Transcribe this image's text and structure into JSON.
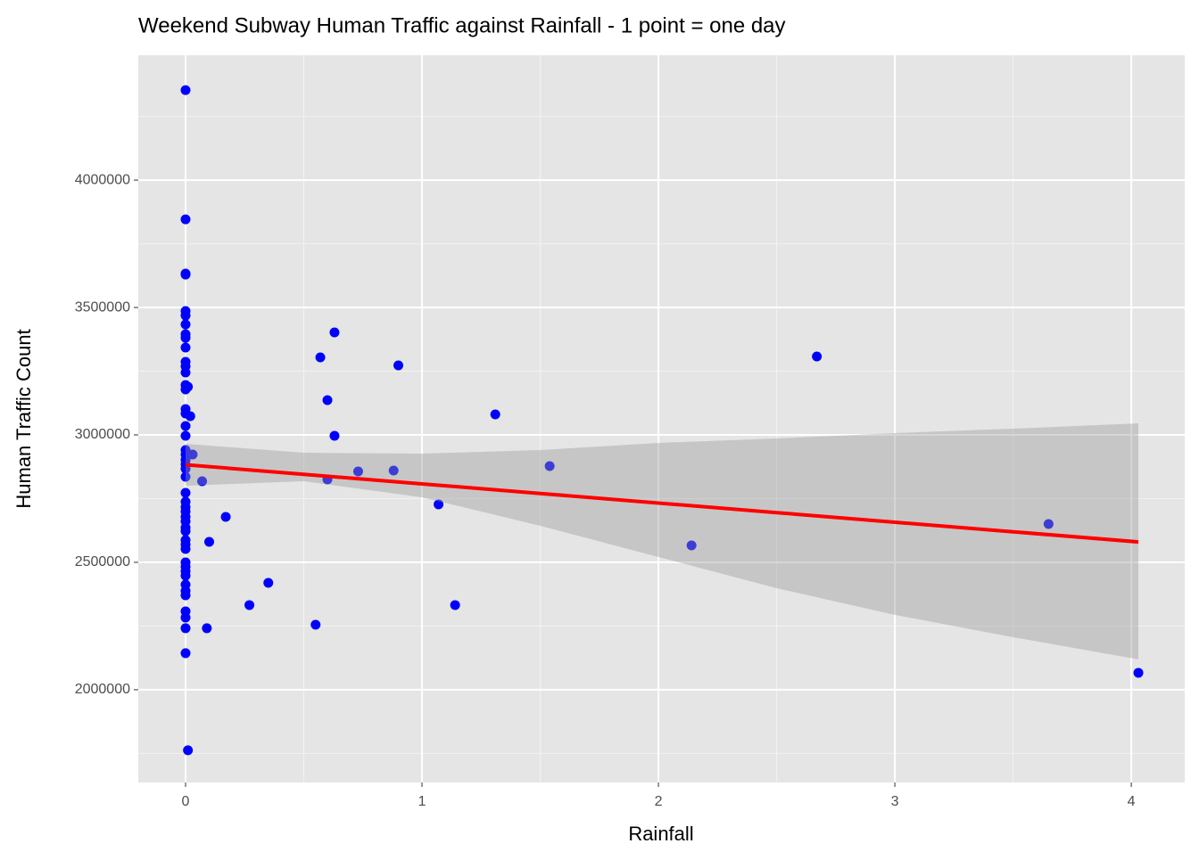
{
  "chart_data": {
    "type": "scatter",
    "title": "Weekend Subway Human Traffic against Rainfall - 1 point = one day",
    "x_label": "Rainfall",
    "y_label": "Human Traffic Count",
    "xlim": [
      -0.2,
      4.226
    ],
    "ylim": [
      1636000,
      4490000
    ],
    "xticks": [
      0,
      1,
      2,
      3,
      4
    ],
    "yticks": [
      2000000,
      2500000,
      3000000,
      3500000,
      4000000
    ],
    "x_minor_grid": [
      0.5,
      1.5,
      2.5,
      3.5
    ],
    "y_minor_grid": [
      1750000,
      2250000,
      2750000,
      3250000,
      3750000,
      4250000
    ],
    "grid": true,
    "point_color": "#0000ff",
    "fit_color": "#ff0000",
    "band_color": "#999999",
    "points": {
      "x": [
        0,
        0,
        0,
        0,
        0,
        0,
        0,
        0,
        0,
        0,
        0,
        0,
        0,
        0,
        0,
        0,
        0,
        0,
        0,
        0,
        0,
        0,
        0,
        0,
        0,
        0,
        0,
        0,
        0,
        0,
        0,
        0,
        0,
        0,
        0,
        0,
        0,
        0,
        0,
        0,
        0,
        0,
        0,
        0,
        0,
        0,
        0,
        0.01,
        0.01,
        0.02,
        0.03,
        0.07,
        0.1,
        0.17,
        0.09,
        0.27,
        0.35,
        0.55,
        0.57,
        0.6,
        0.6,
        0.63,
        0.63,
        0.73,
        0.88,
        0.9,
        1.07,
        1.14,
        1.31,
        1.54,
        2.14,
        2.67,
        3.65,
        4.03
      ],
      "y": [
        4353000,
        3846000,
        3633000,
        3629000,
        3486000,
        3468500,
        3433600,
        3395100,
        3381100,
        3342700,
        3286700,
        3269200,
        3244800,
        3195800,
        3178300,
        3101400,
        3083900,
        3035000,
        2996500,
        2940600,
        2923100,
        2902100,
        2884600,
        2867100,
        2835700,
        2772700,
        2737700,
        2716700,
        2699300,
        2678300,
        2660800,
        2636400,
        2622400,
        2587400,
        2569900,
        2552400,
        2500000,
        2482500,
        2465000,
        2447500,
        2412600,
        2388100,
        2370600,
        2307700,
        2283200,
        2241300,
        2143400,
        1762300,
        3188800,
        3073400,
        2923100,
        2818200,
        2580400,
        2678300,
        2241300,
        2332200,
        2419600,
        2255200,
        3304200,
        3136400,
        2825200,
        3402100,
        2996500,
        2856700,
        2860100,
        3272700,
        2727300,
        2332200,
        3080400,
        2877600,
        2566400,
        3307700,
        2650300,
        2066400
      ]
    },
    "fit": {
      "x": [
        0,
        0.5,
        1,
        1.5,
        2,
        2.5,
        3,
        3.5,
        4.03
      ],
      "y": [
        2883000,
        2845400,
        2807800,
        2770200,
        2732600,
        2695000,
        2657400,
        2619800,
        2580000
      ],
      "ymax": [
        2965000,
        2930000,
        2926600,
        2940600,
        2968600,
        2986000,
        3007000,
        3024500,
        3045500
      ],
      "ymin": [
        2800700,
        2818200,
        2755300,
        2643400,
        2521000,
        2398600,
        2293700,
        2206300,
        2118900
      ]
    }
  }
}
